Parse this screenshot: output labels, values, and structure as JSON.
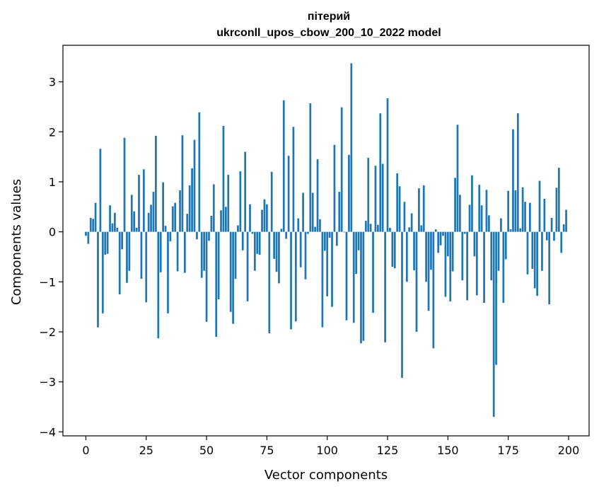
{
  "chart_data": {
    "type": "bar",
    "title": "пітерий",
    "subtitle": "ukrconll_upos_cbow_200_10_2022 model",
    "xlabel": "Vector components",
    "ylabel": "Components values",
    "xlim": [
      -9.5,
      208.5
    ],
    "ylim": [
      -4.08,
      3.73
    ],
    "xticks": [
      0,
      25,
      50,
      75,
      100,
      125,
      150,
      175,
      200
    ],
    "xtick_labels": [
      "0",
      "25",
      "50",
      "75",
      "100",
      "125",
      "150",
      "175",
      "200"
    ],
    "yticks": [
      -4,
      -3,
      -2,
      -1,
      0,
      1,
      2,
      3
    ],
    "ytick_labels": [
      "−4",
      "−3",
      "−2",
      "−1",
      "0",
      "1",
      "2",
      "3"
    ],
    "grid": false,
    "bar_color": "#1f77b4",
    "x": [
      0,
      1,
      2,
      3,
      4,
      5,
      6,
      7,
      8,
      9,
      10,
      11,
      12,
      13,
      14,
      15,
      16,
      17,
      18,
      19,
      20,
      21,
      22,
      23,
      24,
      25,
      26,
      27,
      28,
      29,
      30,
      31,
      32,
      33,
      34,
      35,
      36,
      37,
      38,
      39,
      40,
      41,
      42,
      43,
      44,
      45,
      46,
      47,
      48,
      49,
      50,
      51,
      52,
      53,
      54,
      55,
      56,
      57,
      58,
      59,
      60,
      61,
      62,
      63,
      64,
      65,
      66,
      67,
      68,
      69,
      70,
      71,
      72,
      73,
      74,
      75,
      76,
      77,
      78,
      79,
      80,
      81,
      82,
      83,
      84,
      85,
      86,
      87,
      88,
      89,
      90,
      91,
      92,
      93,
      94,
      95,
      96,
      97,
      98,
      99,
      100,
      101,
      102,
      103,
      104,
      105,
      106,
      107,
      108,
      109,
      110,
      111,
      112,
      113,
      114,
      115,
      116,
      117,
      118,
      119,
      120,
      121,
      122,
      123,
      124,
      125,
      126,
      127,
      128,
      129,
      130,
      131,
      132,
      133,
      134,
      135,
      136,
      137,
      138,
      139,
      140,
      141,
      142,
      143,
      144,
      145,
      146,
      147,
      148,
      149,
      150,
      151,
      152,
      153,
      154,
      155,
      156,
      157,
      158,
      159,
      160,
      161,
      162,
      163,
      164,
      165,
      166,
      167,
      168,
      169,
      170,
      171,
      172,
      173,
      174,
      175,
      176,
      177,
      178,
      179,
      180,
      181,
      182,
      183,
      184,
      185,
      186,
      187,
      188,
      189,
      190,
      191,
      192,
      193,
      194,
      195,
      196,
      197,
      198,
      199
    ],
    "values": [
      -0.08,
      -0.24,
      0.28,
      0.26,
      0.58,
      -1.91,
      1.66,
      -1.63,
      -0.46,
      -0.44,
      0.53,
      0.17,
      0.38,
      0.08,
      -1.25,
      -0.35,
      1.88,
      -1.02,
      -0.78,
      0.74,
      0.41,
      0.08,
      1.14,
      -0.94,
      1.25,
      -1.41,
      0.38,
      0.54,
      0.8,
      1.92,
      -2.13,
      -0.81,
      0.99,
      0.12,
      -1.63,
      -0.19,
      0.51,
      0.58,
      -0.79,
      0.83,
      1.93,
      -0.82,
      0.36,
      0.93,
      1.27,
      1.84,
      -0.15,
      2.39,
      -0.92,
      -0.78,
      -1.8,
      -0.18,
      0.32,
      0.95,
      -2.1,
      -1.35,
      0.43,
      2.12,
      0.5,
      1.14,
      -1.6,
      -1.84,
      -0.94,
      0.13,
      1.21,
      -0.37,
      1.6,
      -1.39,
      0.55,
      -0.04,
      -0.78,
      -0.44,
      -0.46,
      0.44,
      0.65,
      0.55,
      -2.03,
      1.2,
      -0.54,
      -0.8,
      -1.03,
      0.06,
      2.63,
      -0.14,
      1.52,
      -1.95,
      2.1,
      -1.79,
      0.27,
      -0.71,
      0.78,
      -0.95,
      -0.04,
      2.57,
      0.78,
      0.1,
      1.45,
      0.25,
      -1.91,
      -0.38,
      -1.29,
      -0.12,
      -1.5,
      1.74,
      -0.28,
      0.8,
      2.49,
      -0.01,
      -1.77,
      1.54,
      3.37,
      -1.82,
      -0.84,
      -0.37,
      -2.23,
      -2.18,
      0.22,
      1.48,
      0.16,
      -1.62,
      1.32,
      0.14,
      2.37,
      1.36,
      -2.21,
      2.67,
      0.08,
      -0.7,
      -0.73,
      1.17,
      0.91,
      -2.92,
      0.6,
      -1.0,
      0.09,
      0.37,
      -0.77,
      -2.0,
      0.87,
      0.13,
      0.93,
      -1.0,
      -1.58,
      -0.76,
      -2.33,
      0.05,
      -0.42,
      -0.27,
      -0.08,
      -1.3,
      -0.49,
      -1.39,
      -0.79,
      1.08,
      2.14,
      0.74,
      -0.97,
      -0.04,
      -1.37,
      0.54,
      1.13,
      -0.49,
      -1.27,
      0.94,
      0.53,
      -1.42,
      0.84,
      0.33,
      -0.97,
      -3.7,
      -2.66,
      -0.78,
      0.27,
      -1.42,
      -0.55,
      0.82,
      0.05,
      2.05,
      0.83,
      2.37,
      0.07,
      0.89,
      0.6,
      -0.85,
      0.58,
      -0.74,
      -1.13,
      -1.28,
      1.02,
      -0.78,
      0.66,
      -0.17,
      -1.45,
      0.28,
      -0.18,
      0.88,
      1.28,
      -0.42,
      0.15,
      0.44
    ]
  }
}
